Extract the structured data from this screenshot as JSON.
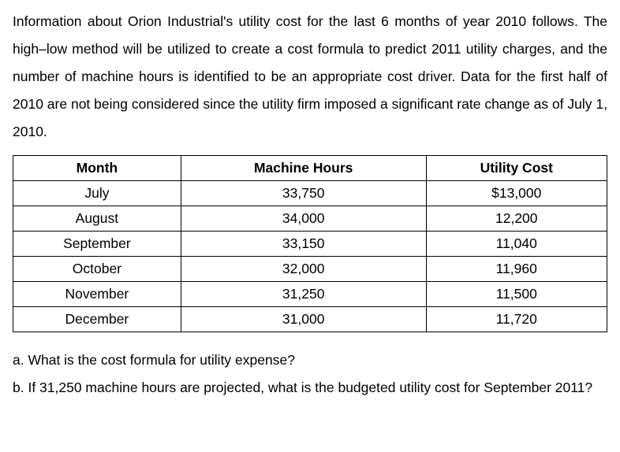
{
  "paragraph": "Information about Orion Industrial's utility cost for the last 6 months of year 2010 follows. The high–low method will be utilized to create a cost formula to predict 2011 utility charges, and the number of machine hours is identified to be an appropriate cost driver. Data for the first half of 2010 are not being considered since the utility firm imposed a significant rate change as of July 1, 2010.",
  "table": {
    "columns": [
      "Month",
      "Machine Hours",
      "Utility Cost"
    ],
    "rows": [
      [
        "July",
        "33,750",
        "$13,000"
      ],
      [
        "August",
        "34,000",
        "12,200"
      ],
      [
        "September",
        "33,150",
        "11,040"
      ],
      [
        "October",
        "32,000",
        "11,960"
      ],
      [
        "November",
        "31,250",
        "11,500"
      ],
      [
        "December",
        "31,000",
        "11,720"
      ]
    ],
    "border_color": "#000000",
    "background_color": "#ffffff",
    "header_fontweight": "bold",
    "cell_align": "center"
  },
  "questions": {
    "a": "a. What is the cost formula for utility expense?",
    "b": "b. If 31,250 machine hours are projected, what is the budgeted utility cost for September 2011?"
  }
}
